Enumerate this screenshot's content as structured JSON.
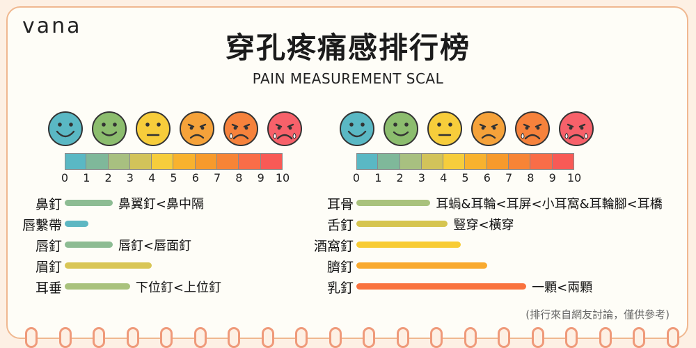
{
  "brand": "vana",
  "title": "穿孔疼痛感排行榜",
  "subtitle": "PAIN MEASUREMENT SCAL",
  "scale_ticks": [
    "0",
    "1",
    "2",
    "3",
    "4",
    "5",
    "6",
    "7",
    "8",
    "9",
    "10"
  ],
  "scale_colors": [
    "#5ab8c4",
    "#7fb89a",
    "#a8c080",
    "#d2c35a",
    "#f6cd3c",
    "#f8b22e",
    "#f79a2c",
    "#f78436",
    "#f96d48",
    "#f85a56"
  ],
  "faces": [
    {
      "icon": "very-happy-face-icon",
      "color": "#5ab8c4"
    },
    {
      "icon": "happy-face-icon",
      "color": "#8cbd6e"
    },
    {
      "icon": "neutral-face-icon",
      "color": "#f7cd3b"
    },
    {
      "icon": "sad-face-icon",
      "color": "#f5a23a"
    },
    {
      "icon": "crying-face-icon",
      "color": "#f6823c"
    },
    {
      "icon": "sobbing-face-icon",
      "color": "#f7616a"
    }
  ],
  "left_list": [
    {
      "label": "鼻釘",
      "level": 2.2,
      "color": "#8dbc93",
      "note": "鼻翼釘<鼻中隔"
    },
    {
      "label": "唇繫帶",
      "level": 1.1,
      "color": "#5db7c2",
      "note": ""
    },
    {
      "label": "唇釘",
      "level": 2.2,
      "color": "#8dbc93",
      "note": "唇釘<唇面釘"
    },
    {
      "label": "眉釘",
      "level": 4.0,
      "color": "#d9c656",
      "note": ""
    },
    {
      "label": "耳垂",
      "level": 3.0,
      "color": "#a9c27d",
      "note": "下位釘<上位釘"
    }
  ],
  "right_list": [
    {
      "label": "耳骨",
      "level": 3.4,
      "color": "#a9c27d",
      "note": "耳蝸&耳輪<耳屏<小耳窩&耳輪腳<耳橋"
    },
    {
      "label": "舌釘",
      "level": 4.2,
      "color": "#d6c550",
      "note": "豎穿<橫穿"
    },
    {
      "label": "酒窩釘",
      "level": 4.8,
      "color": "#f8cc35",
      "note": ""
    },
    {
      "label": "臍釘",
      "level": 6.0,
      "color": "#f9aa2f",
      "note": ""
    },
    {
      "label": "乳釘",
      "level": 7.8,
      "color": "#f9723e",
      "note": "一顆<兩顆"
    }
  ],
  "footnote": "(排行來自網友討論，僅供參考)"
}
